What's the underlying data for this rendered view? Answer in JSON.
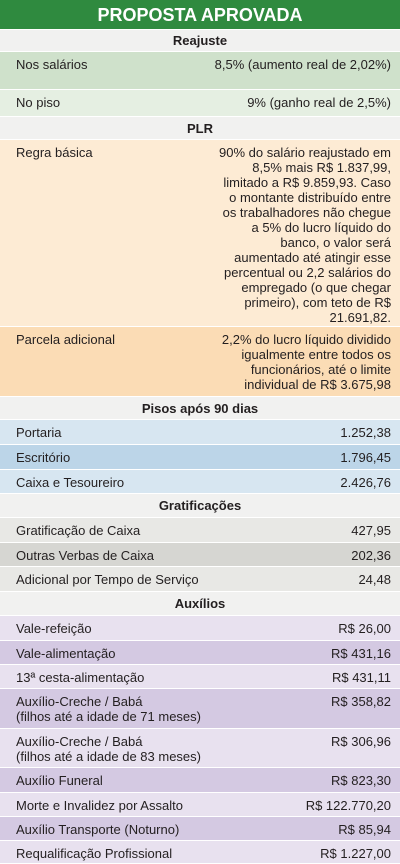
{
  "title": "PROPOSTA APROVADA",
  "sections": [
    {
      "heading": "Reajuste",
      "rows": [
        [
          "Nos salários",
          "8,5% (aumento real de 2,02%)"
        ],
        [
          "No piso",
          "9% (ganho real de 2,5%)"
        ]
      ]
    },
    {
      "heading": "PLR",
      "rows": [
        [
          "Regra básica",
          "90% do salário reajustado em 8,5% mais R$ 1.837,99, limitado a R$ 9.859,93. Caso o montante distribuído entre os trabalhadores não chegue a 5% do lucro líquido do banco, o valor será aumentado até atingir esse percentual ou 2,2 salários do empregado (o que chegar primeiro), com teto de R$ 21.691,82."
        ],
        [
          "Parcela adicional",
          "2,2% do lucro líquido dividido igualmente entre todos os funcionários, até o limite individual de R$ 3.675,98"
        ]
      ]
    },
    {
      "heading": "Pisos após 90 dias",
      "rows": [
        [
          "Portaria",
          "1.252,38"
        ],
        [
          "Escritório",
          "1.796,45"
        ],
        [
          "Caixa e Tesoureiro",
          "2.426,76"
        ]
      ]
    },
    {
      "heading": "Gratificações",
      "rows": [
        [
          "Gratificação de Caixa",
          "427,95"
        ],
        [
          "Outras Verbas de Caixa",
          "202,36"
        ],
        [
          "Adicional por Tempo de Serviço",
          "24,48"
        ]
      ]
    },
    {
      "heading": "Auxílios",
      "rows": [
        [
          "Vale-refeição",
          "R$ 26,00"
        ],
        [
          "Vale-alimentação",
          "R$ 431,16"
        ],
        [
          "13ª cesta-alimentação",
          "R$ 431,11"
        ],
        [
          "Auxílio-Creche / Babá\n(filhos até a idade de 71 meses)",
          "R$ 358,82"
        ],
        [
          "Auxílio-Creche / Babá\n(filhos até a idade de 83 meses)",
          "R$ 306,96"
        ],
        [
          "Auxílio Funeral",
          "R$ 823,30"
        ],
        [
          "Morte e Invalidez por Assalto",
          "R$ 122.770,20"
        ],
        [
          "Auxílio Transporte (Noturno)",
          "R$ 85,94"
        ],
        [
          "Requalificação Profissional",
          "R$ 1.227,00"
        ]
      ]
    }
  ]
}
